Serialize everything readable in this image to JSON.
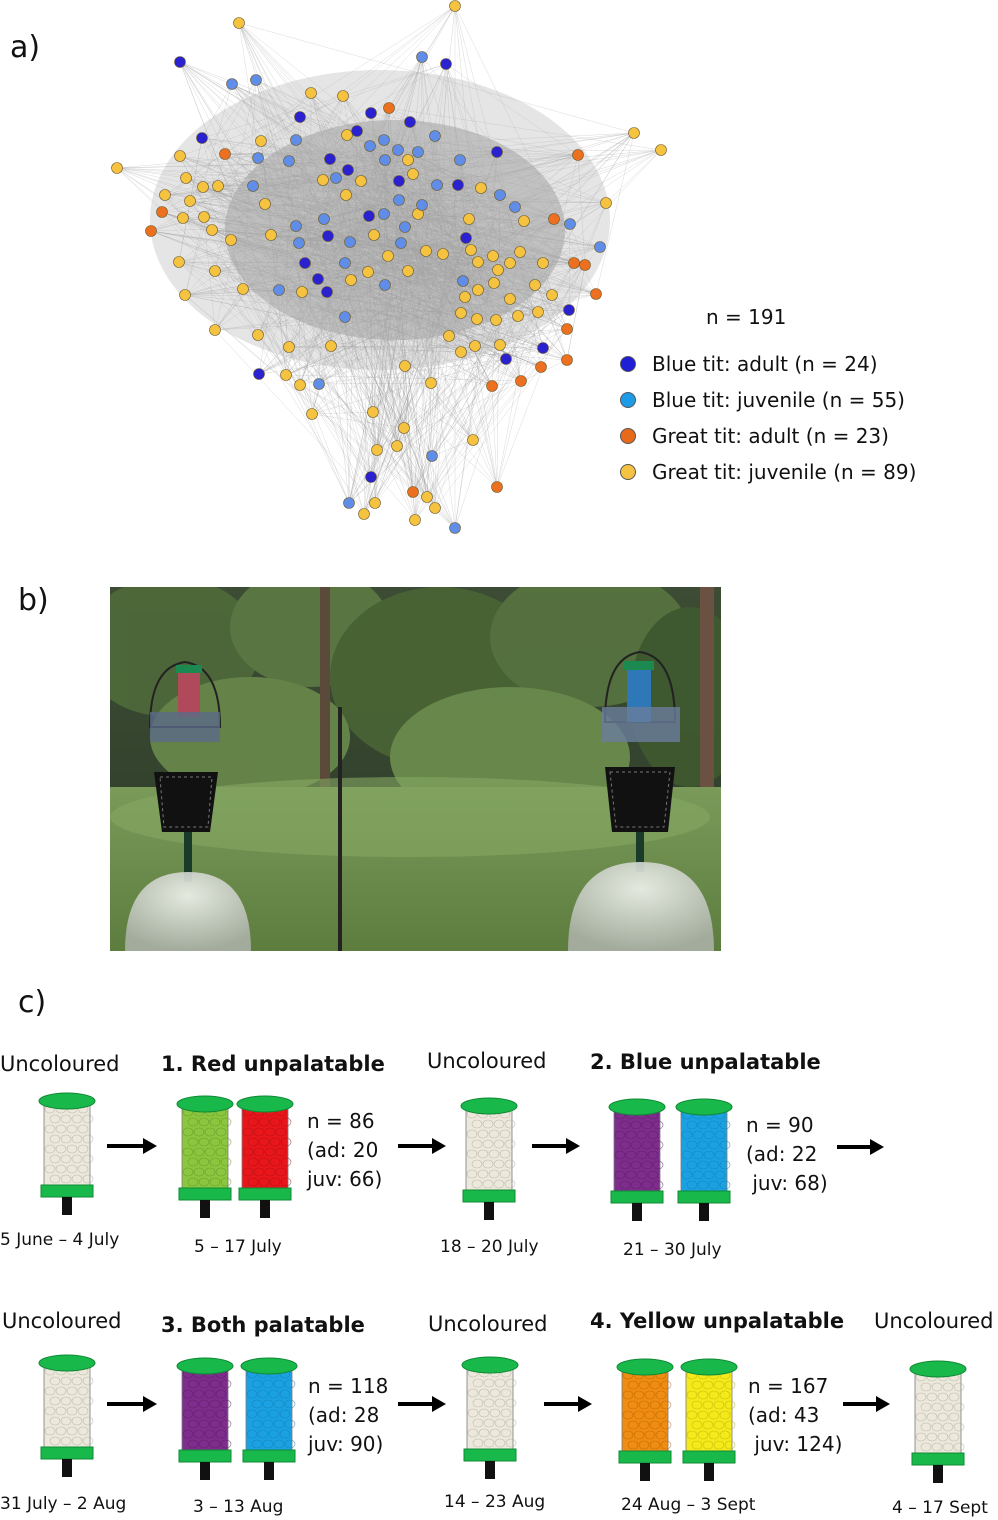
{
  "panels": {
    "a": "a)",
    "b": "b)",
    "c": "c)"
  },
  "legend": {
    "total": "n = 191",
    "items": [
      {
        "label": "Blue tit: adult (n = 24)",
        "color": "#1f1fd6"
      },
      {
        "label": "Blue tit: juvenile (n = 55)",
        "color": "#1e9be6"
      },
      {
        "label": "Great tit: adult (n = 23)",
        "color": "#e66a1a"
      },
      {
        "label": "Great tit: juvenile (n = 89)",
        "color": "#f5c242"
      }
    ]
  },
  "colors": {
    "blue_adult": "#2a22d0",
    "blue_juv": "#5f8de8",
    "great_adult": "#ec7020",
    "great_juv": "#f6c340",
    "feeder_cap": "#19b84a",
    "uncoloured": "#ece9dc",
    "green_dye": "#8bc63f",
    "red_dye": "#e8161b",
    "purple_dye": "#7f2d8c",
    "blue_dye": "#1ba1e2",
    "orange_dye": "#ef8c12",
    "yellow_dye": "#f4ea1a"
  },
  "timeline": {
    "row1": {
      "stage0": {
        "title": "Uncoloured",
        "date": "5 June – 4 July"
      },
      "stage1": {
        "title": "1. Red unpalatable",
        "date": "5 – 17 July",
        "n": "n = 86\n(ad: 20\njuv: 66)"
      },
      "stage2": {
        "title": "Uncoloured",
        "date": "18 – 20 July"
      },
      "stage3": {
        "title": "2.  Blue unpalatable",
        "date": "21 – 30 July",
        "n": "n = 90\n(ad: 22\n juv: 68)"
      }
    },
    "row2": {
      "stage0": {
        "title": "Uncoloured",
        "date": "31 July – 2 Aug"
      },
      "stage1": {
        "title": "3. Both palatable",
        "date": "3 – 13 Aug",
        "n": "n = 118\n(ad: 28\njuv: 90)"
      },
      "stage2": {
        "title": "Uncoloured",
        "date": "14 – 23 Aug"
      },
      "stage3": {
        "title": "4. Yellow unpalatable",
        "date": "24 Aug – 3 Sept",
        "n": "n = 167\n(ad: 43\n juv: 124)"
      },
      "stage4": {
        "title": "Uncoloured",
        "date": "4 – 17 Sept"
      }
    }
  }
}
